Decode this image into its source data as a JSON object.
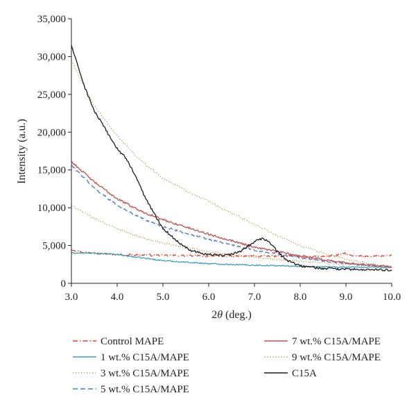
{
  "chart_data": {
    "type": "line",
    "xlabel_prefix": "2",
    "xlabel_symbol": "θ",
    "xlabel_suffix": " (deg.)",
    "ylabel": "Intensity (a.u.)",
    "xlim": [
      3.0,
      10.0
    ],
    "ylim": [
      0,
      35000
    ],
    "x_ticks": [
      3.0,
      4.0,
      5.0,
      6.0,
      7.0,
      8.0,
      9.0,
      10.0
    ],
    "x_tick_labels": [
      "3.0",
      "4.0",
      "5.0",
      "6.0",
      "7.0",
      "8.0",
      "9.0",
      "10.0"
    ],
    "y_ticks": [
      0,
      5000,
      10000,
      15000,
      20000,
      25000,
      30000,
      35000
    ],
    "y_tick_labels": [
      "0",
      "5,000",
      "10,000",
      "15,000",
      "20,000",
      "25,000",
      "30,000",
      "35,000"
    ],
    "grid": false,
    "legend_position": "bottom",
    "series": [
      {
        "name": "Control MAPE",
        "color": "#e0402b",
        "dash": "dash-dot",
        "noise": 120,
        "x": [
          3.0,
          3.2,
          3.5,
          4.0,
          5.0,
          6.0,
          7.0,
          8.0,
          8.5,
          8.8,
          8.95,
          9.1,
          9.5,
          10.0
        ],
        "y": [
          4500,
          4150,
          4000,
          3800,
          3700,
          3600,
          3600,
          3600,
          3550,
          3700,
          4000,
          3650,
          3600,
          3650
        ]
      },
      {
        "name": "1 wt.% C15A/MAPE",
        "color": "#3a9fbd",
        "dash": "solid",
        "noise": 80,
        "x": [
          3.0,
          3.5,
          4.0,
          4.5,
          5.0,
          6.0,
          7.0,
          8.0,
          9.0,
          10.0
        ],
        "y": [
          4000,
          4000,
          3800,
          3400,
          3000,
          2600,
          2400,
          2250,
          2150,
          2100
        ]
      },
      {
        "name": "3 wt.% C15A/MAPE",
        "color": "#b7984a",
        "dash": "dotted",
        "noise": 100,
        "x": [
          3.0,
          3.5,
          4.0,
          4.5,
          5.0,
          6.0,
          7.0,
          8.0,
          9.0,
          10.0
        ],
        "y": [
          10300,
          8600,
          7200,
          6100,
          5300,
          4200,
          3400,
          2900,
          2500,
          2200
        ]
      },
      {
        "name": "5 wt.% C15A/MAPE",
        "color": "#4a78c0",
        "dash": "dashed",
        "noise": 130,
        "x": [
          3.0,
          3.5,
          4.0,
          4.5,
          5.0,
          6.0,
          7.0,
          8.0,
          9.0,
          10.0
        ],
        "y": [
          15600,
          12600,
          10300,
          8700,
          7500,
          5800,
          4400,
          3400,
          2600,
          2200
        ]
      },
      {
        "name": "7 wt.% C15A/MAPE",
        "color": "#c0504d",
        "dash": "solid",
        "noise": 140,
        "x": [
          3.0,
          3.5,
          4.0,
          4.5,
          5.0,
          6.0,
          7.0,
          8.0,
          9.0,
          10.0
        ],
        "y": [
          16100,
          13400,
          11200,
          9600,
          8400,
          6500,
          4800,
          3600,
          2700,
          2200
        ]
      },
      {
        "name": "9 wt.% C15A/MAPE",
        "color": "#b7984a",
        "dash": "dotted",
        "noise": 120,
        "x": [
          3.0,
          3.2,
          3.5,
          4.0,
          4.5,
          5.0,
          5.5,
          6.0,
          6.5,
          7.0,
          7.5,
          8.0,
          8.5,
          9.0,
          9.5,
          10.0
        ],
        "y": [
          29500,
          27000,
          23500,
          19500,
          16300,
          13900,
          12300,
          10800,
          9300,
          7800,
          6300,
          5000,
          4000,
          3200,
          2600,
          2200
        ]
      },
      {
        "name": "C15A",
        "color": "#1a1a1a",
        "dash": "solid",
        "noise": 150,
        "x": [
          3.0,
          3.1,
          3.3,
          3.5,
          3.8,
          4.0,
          4.2,
          4.4,
          4.6,
          4.8,
          5.0,
          5.3,
          5.6,
          5.9,
          6.2,
          6.5,
          6.7,
          6.9,
          7.05,
          7.2,
          7.35,
          7.5,
          7.7,
          8.0,
          8.5,
          9.0,
          9.5,
          10.0
        ],
        "y": [
          31500,
          29500,
          25800,
          22800,
          19800,
          17800,
          16500,
          14200,
          11500,
          9300,
          7300,
          5600,
          4400,
          3900,
          3700,
          3800,
          4300,
          5100,
          5700,
          5900,
          5300,
          4200,
          3100,
          2300,
          1950,
          1850,
          1800,
          1750
        ]
      }
    ]
  }
}
